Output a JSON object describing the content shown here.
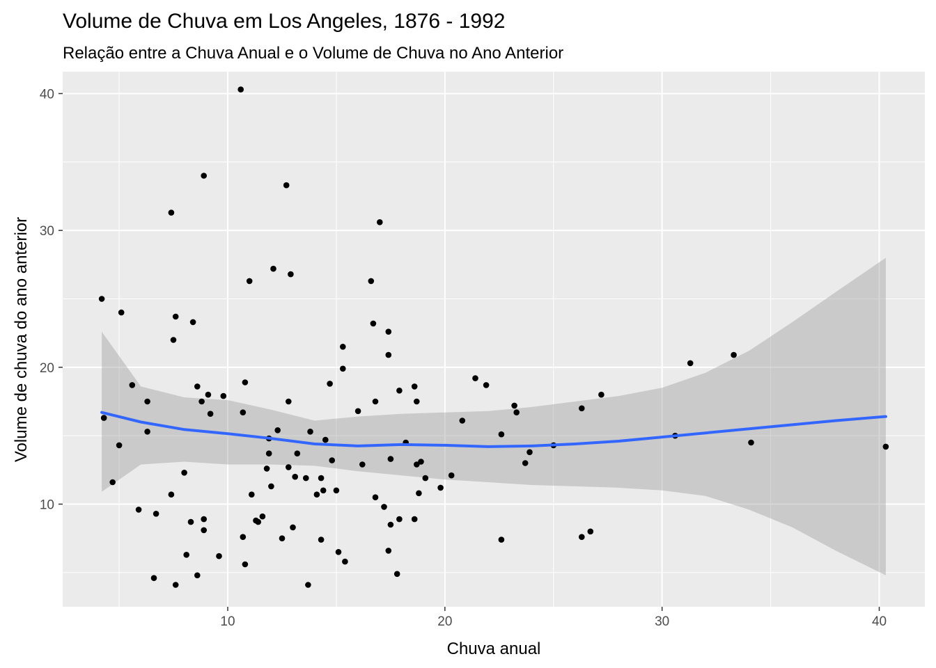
{
  "chart_data": {
    "type": "scatter",
    "title": "Volume de Chuva em Los Angeles, 1876 - 1992",
    "subtitle": "Relação entre a Chuva Anual e o Volume de Chuva no Ano Anterior",
    "xlabel": "Chuva anual",
    "ylabel": "Volume de chuva do ano anterior",
    "xlim": [
      2.4,
      42.1
    ],
    "ylim": [
      2.5,
      41.6
    ],
    "x_ticks": [
      10,
      20,
      30,
      40
    ],
    "x_tick_labels": [
      "10",
      "20",
      "30",
      "40"
    ],
    "y_ticks": [
      10,
      20,
      30,
      40
    ],
    "y_tick_labels": [
      "10",
      "20",
      "30",
      "40"
    ],
    "grid": true,
    "legend": "none",
    "colors": {
      "panel": "#ebebeb",
      "grid": "#ffffff",
      "points": "#000000",
      "smooth_line": "#3366ff",
      "ribbon": "#999999"
    },
    "points": [
      [
        4.2,
        25.0
      ],
      [
        4.3,
        16.3
      ],
      [
        4.7,
        11.6
      ],
      [
        5.0,
        14.3
      ],
      [
        5.1,
        24.0
      ],
      [
        5.6,
        18.7
      ],
      [
        5.9,
        9.6
      ],
      [
        6.3,
        17.5
      ],
      [
        6.3,
        15.3
      ],
      [
        6.6,
        4.6
      ],
      [
        6.7,
        9.3
      ],
      [
        7.4,
        31.3
      ],
      [
        7.4,
        10.7
      ],
      [
        7.5,
        22.0
      ],
      [
        7.6,
        23.7
      ],
      [
        7.6,
        4.1
      ],
      [
        8.0,
        12.3
      ],
      [
        8.1,
        6.3
      ],
      [
        8.3,
        8.7
      ],
      [
        8.4,
        23.3
      ],
      [
        8.6,
        18.6
      ],
      [
        8.6,
        4.8
      ],
      [
        8.8,
        17.5
      ],
      [
        8.9,
        34.0
      ],
      [
        8.9,
        8.9
      ],
      [
        8.9,
        8.1
      ],
      [
        9.1,
        18.0
      ],
      [
        9.2,
        16.6
      ],
      [
        9.6,
        6.2
      ],
      [
        9.8,
        17.9
      ],
      [
        10.6,
        40.3
      ],
      [
        10.7,
        7.6
      ],
      [
        10.7,
        16.7
      ],
      [
        10.8,
        18.9
      ],
      [
        10.8,
        5.6
      ],
      [
        11.0,
        26.3
      ],
      [
        11.1,
        10.7
      ],
      [
        11.3,
        8.8
      ],
      [
        11.4,
        8.7
      ],
      [
        11.6,
        9.1
      ],
      [
        11.8,
        12.6
      ],
      [
        11.9,
        14.8
      ],
      [
        11.9,
        13.7
      ],
      [
        12.0,
        11.3
      ],
      [
        12.1,
        27.2
      ],
      [
        12.3,
        15.4
      ],
      [
        12.5,
        7.5
      ],
      [
        12.7,
        33.3
      ],
      [
        12.8,
        17.5
      ],
      [
        12.8,
        12.7
      ],
      [
        12.9,
        26.8
      ],
      [
        13.0,
        8.3
      ],
      [
        13.1,
        12.0
      ],
      [
        13.2,
        13.7
      ],
      [
        13.6,
        11.9
      ],
      [
        13.7,
        4.1
      ],
      [
        13.8,
        15.3
      ],
      [
        14.1,
        10.7
      ],
      [
        14.3,
        11.9
      ],
      [
        14.3,
        7.4
      ],
      [
        14.4,
        11.0
      ],
      [
        14.5,
        14.7
      ],
      [
        14.7,
        18.8
      ],
      [
        14.8,
        13.2
      ],
      [
        15.0,
        11.0
      ],
      [
        15.1,
        6.5
      ],
      [
        15.3,
        19.9
      ],
      [
        15.3,
        21.5
      ],
      [
        15.4,
        5.8
      ],
      [
        16.0,
        16.8
      ],
      [
        16.2,
        12.9
      ],
      [
        16.6,
        26.3
      ],
      [
        16.7,
        23.2
      ],
      [
        16.8,
        17.5
      ],
      [
        16.8,
        10.5
      ],
      [
        17.0,
        30.6
      ],
      [
        17.2,
        9.8
      ],
      [
        17.4,
        22.6
      ],
      [
        17.4,
        20.9
      ],
      [
        17.4,
        6.6
      ],
      [
        17.5,
        13.3
      ],
      [
        17.5,
        8.5
      ],
      [
        17.8,
        4.9
      ],
      [
        17.9,
        18.3
      ],
      [
        17.9,
        8.9
      ],
      [
        18.2,
        14.5
      ],
      [
        18.6,
        8.9
      ],
      [
        18.6,
        18.6
      ],
      [
        18.7,
        17.5
      ],
      [
        18.7,
        12.9
      ],
      [
        18.8,
        10.8
      ],
      [
        18.9,
        13.1
      ],
      [
        19.1,
        11.9
      ],
      [
        19.8,
        11.2
      ],
      [
        20.3,
        12.1
      ],
      [
        20.8,
        16.1
      ],
      [
        21.4,
        19.2
      ],
      [
        21.9,
        18.7
      ],
      [
        22.6,
        7.4
      ],
      [
        22.6,
        15.1
      ],
      [
        23.2,
        17.2
      ],
      [
        23.3,
        16.7
      ],
      [
        23.7,
        13.0
      ],
      [
        23.9,
        13.8
      ],
      [
        25.0,
        14.3
      ],
      [
        26.3,
        7.6
      ],
      [
        26.3,
        17.0
      ],
      [
        26.7,
        8.0
      ],
      [
        27.2,
        18.0
      ],
      [
        30.6,
        15.0
      ],
      [
        31.3,
        20.3
      ],
      [
        33.3,
        20.9
      ],
      [
        34.1,
        14.5
      ],
      [
        40.3,
        14.2
      ]
    ],
    "smooth": {
      "method": "loess",
      "x": [
        4.2,
        6.0,
        8.0,
        10.0,
        12.0,
        14.0,
        16.0,
        18.0,
        20.0,
        22.0,
        24.0,
        26.0,
        28.0,
        30.0,
        32.0,
        34.0,
        36.0,
        38.0,
        40.3
      ],
      "y": [
        16.7,
        16.0,
        15.45,
        15.15,
        14.8,
        14.4,
        14.25,
        14.35,
        14.3,
        14.2,
        14.25,
        14.4,
        14.6,
        14.9,
        15.2,
        15.5,
        15.8,
        16.1,
        16.4
      ],
      "lower": [
        10.9,
        12.9,
        13.1,
        12.9,
        12.9,
        12.8,
        12.4,
        12.1,
        11.8,
        11.6,
        11.4,
        11.3,
        11.2,
        11.0,
        10.6,
        9.6,
        8.3,
        6.6,
        4.8
      ],
      "upper": [
        22.6,
        18.6,
        17.8,
        17.6,
        16.9,
        16.1,
        16.4,
        16.6,
        16.7,
        16.8,
        17.1,
        17.5,
        17.9,
        18.5,
        19.6,
        21.2,
        23.3,
        25.5,
        28.0
      ]
    }
  }
}
